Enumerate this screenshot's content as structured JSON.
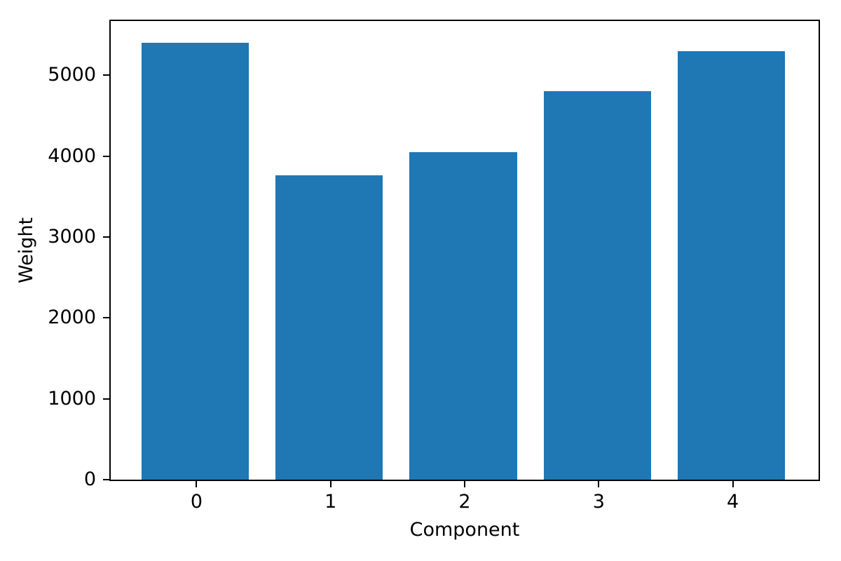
{
  "chart_data": {
    "type": "bar",
    "title": "",
    "xlabel": "Component",
    "ylabel": "Weight",
    "categories": [
      "0",
      "1",
      "2",
      "3",
      "4"
    ],
    "values": [
      5400,
      3765,
      4050,
      4805,
      5295
    ],
    "bar_color": "#1f77b4",
    "bar_width": 0.8,
    "xlim": [
      -0.64,
      4.64
    ],
    "ylim": [
      0,
      5670
    ],
    "yticks": [
      0,
      1000,
      2000,
      3000,
      4000,
      5000
    ],
    "grid": false,
    "legend": "none",
    "background_color": "#ffffff",
    "spine_color": "#000000",
    "tick_color": "#000000"
  }
}
